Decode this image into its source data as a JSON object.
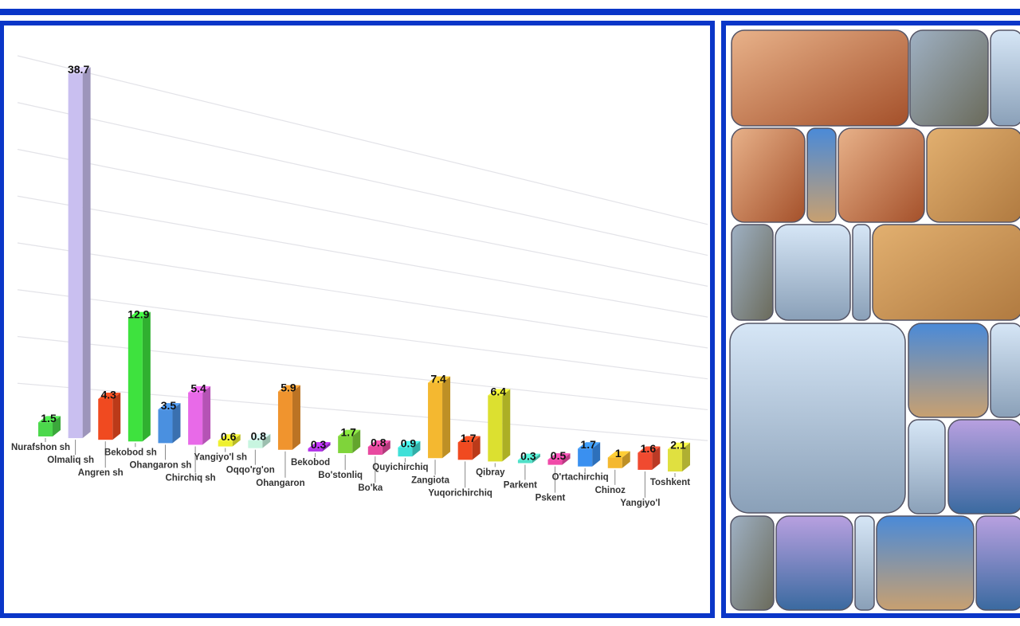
{
  "chart_data": {
    "type": "bar3d",
    "categories": [
      "Nurafshon sh",
      "Olmaliq sh",
      "Angren sh",
      "Bekobod sh",
      "Ohangaron sh",
      "Chirchiq sh",
      "Yangiyo'l sh",
      "Oqqo'rg'on",
      "Ohangaron",
      "Bekobod",
      "Bo'stonliq",
      "Bo'ka",
      "Quyichirchiq",
      "Zangiota",
      "Yuqorichirchiq",
      "Qibray",
      "Parkent",
      "Pskent",
      "O'rtachirchiq",
      "Chinoz",
      "Yangiyo'l",
      "Toshkent"
    ],
    "values": [
      1.5,
      38.7,
      4.3,
      12.9,
      3.5,
      5.4,
      0.6,
      0.8,
      5.9,
      0.3,
      1.7,
      0.8,
      0.9,
      7.4,
      1.7,
      6.4,
      0.3,
      0.5,
      1.7,
      1,
      1.6,
      2.1
    ],
    "colors": [
      "#4cd84c",
      "#c9bff0",
      "#f04a20",
      "#3ee23e",
      "#4a90e0",
      "#e86ae8",
      "#eef030",
      "#c8f5e0",
      "#f0942e",
      "#b030e8",
      "#7fd43a",
      "#e84aa0",
      "#40e0d8",
      "#f4b830",
      "#f04a20",
      "#dce030",
      "#50e0c8",
      "#f04aa8",
      "#3a90f0",
      "#f4b830",
      "#f04a30",
      "#e0e040"
    ],
    "ylim": [
      0,
      42
    ],
    "yticks": [
      5,
      10,
      15,
      20,
      25,
      30,
      35,
      40
    ],
    "grid": true
  }
}
